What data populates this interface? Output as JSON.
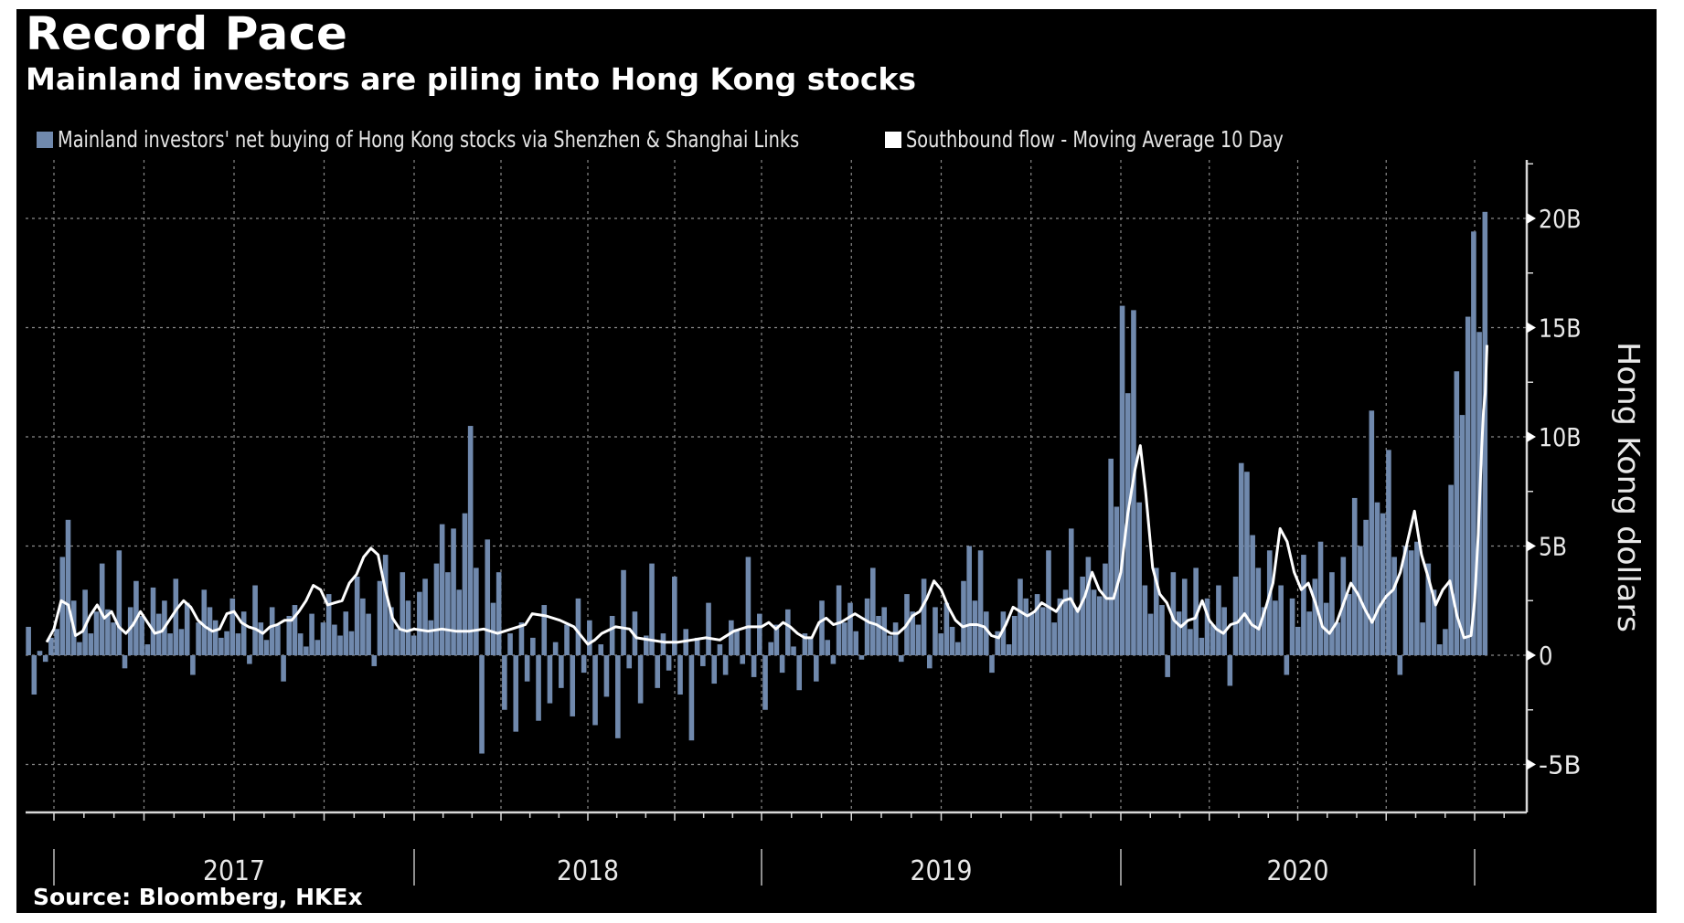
{
  "chart_data": {
    "type": "bar",
    "title": "Record Pace",
    "subtitle": "Mainland investors are piling into Hong Kong stocks",
    "source": "Source: Bloomberg, HKEx",
    "ylabel": "Hong Kong dollars",
    "xlabel": "",
    "ylim": [
      -7.3,
      22.7
    ],
    "xlim": [
      2016.92,
      2021.1
    ],
    "yticks": [
      {
        "value": 20,
        "label": "20B"
      },
      {
        "value": 15,
        "label": "15B"
      },
      {
        "value": 10,
        "label": "10B"
      },
      {
        "value": 5,
        "label": "5B"
      },
      {
        "value": 0,
        "label": "0"
      },
      {
        "value": -5,
        "label": "-5B"
      }
    ],
    "year_labels": [
      {
        "label": "2017",
        "start": 2017,
        "end": 2018
      },
      {
        "label": "2018",
        "start": 2018,
        "end": 2019
      },
      {
        "label": "2019",
        "start": 2019,
        "end": 2020
      },
      {
        "label": "2020",
        "start": 2020,
        "end": 2021
      }
    ],
    "year_boundaries": [
      2017,
      2018,
      2019,
      2020,
      2021
    ],
    "grid": true,
    "legend_position": "top-left",
    "series": [
      {
        "name": "Mainland investors' net buying of Hong Kong stocks via Shenzhen & Shanghai Links",
        "type": "bar",
        "color": "#7089ad",
        "x_start": 2016.93,
        "x_end": 2021.03,
        "values": [
          1.3,
          -1.8,
          0.2,
          -0.3,
          0.8,
          1.2,
          4.5,
          6.2,
          2.5,
          0.6,
          3.0,
          1.0,
          2.0,
          4.2,
          2.1,
          1.5,
          4.8,
          -0.6,
          2.2,
          3.4,
          1.8,
          0.5,
          3.1,
          1.9,
          2.5,
          1.0,
          3.5,
          1.2,
          2.4,
          -0.9,
          1.5,
          3.0,
          2.2,
          1.6,
          0.8,
          1.1,
          2.6,
          1.0,
          2.0,
          -0.4,
          3.2,
          1.5,
          0.7,
          2.2,
          1.4,
          -1.2,
          1.8,
          2.3,
          1.0,
          0.4,
          1.9,
          0.7,
          1.5,
          2.8,
          1.4,
          0.9,
          2.0,
          1.1,
          3.6,
          2.6,
          1.9,
          -0.5,
          3.4,
          4.6,
          2.2,
          1.2,
          3.8,
          2.5,
          0.9,
          2.9,
          3.5,
          1.6,
          4.2,
          6.0,
          3.8,
          5.8,
          3.0,
          6.5,
          10.5,
          4.0,
          -4.5,
          5.3,
          2.4,
          3.8,
          -2.5,
          1.0,
          -3.5,
          1.5,
          -1.2,
          0.8,
          -3.0,
          2.3,
          -2.2,
          0.6,
          -1.5,
          1.4,
          -2.8,
          2.6,
          -0.8,
          1.6,
          -3.2,
          0.5,
          -1.9,
          1.8,
          -3.8,
          3.9,
          -0.6,
          2.0,
          -2.2,
          0.9,
          4.2,
          -1.5,
          1.0,
          -0.7,
          3.6,
          -1.8,
          1.2,
          -3.9,
          0.8,
          -0.5,
          2.4,
          -1.3,
          0.5,
          -0.9,
          1.6,
          1.2,
          -0.4,
          4.5,
          -1.0,
          1.9,
          -2.5,
          0.6,
          1.4,
          -0.8,
          2.1,
          0.4,
          -1.6,
          1.0,
          0.8,
          -1.2,
          2.5,
          0.7,
          -0.4,
          3.2,
          1.5,
          2.4,
          1.1,
          -0.2,
          2.6,
          4.0,
          1.8,
          2.2,
          0.9,
          1.5,
          -0.3,
          2.8,
          2.0,
          1.4,
          3.5,
          -0.6,
          2.2,
          1.0,
          2.4,
          1.3,
          0.6,
          3.4,
          5.0,
          2.5,
          4.8,
          2.0,
          -0.8,
          1.1,
          2.0,
          0.5,
          1.8,
          3.5,
          2.6,
          1.9,
          2.8,
          2.2,
          4.8,
          1.5,
          2.6,
          3.0,
          5.8,
          2.2,
          3.6,
          4.5,
          3.0,
          2.7,
          4.2,
          9.0,
          6.8,
          16.0,
          12.0,
          15.8,
          7.0,
          3.2,
          1.9,
          4.0,
          2.3,
          -1.0,
          3.8,
          2.0,
          3.5,
          1.2,
          4.0,
          0.8,
          2.6,
          1.4,
          3.2,
          2.2,
          -1.4,
          3.6,
          8.8,
          8.4,
          5.5,
          4.0,
          2.2,
          4.8,
          2.5,
          3.2,
          -0.9,
          2.6,
          1.3,
          4.6,
          2.0,
          3.5,
          5.2,
          2.4,
          3.8,
          1.5,
          4.5,
          2.8,
          7.2,
          5.0,
          6.2,
          11.2,
          7.0,
          6.5,
          9.4,
          4.5,
          -0.9,
          5.0,
          4.8,
          5.2,
          1.5,
          4.2,
          3.0,
          0.5,
          1.2,
          7.8,
          13.0,
          11.0,
          15.5,
          19.4,
          14.8,
          20.3
        ]
      },
      {
        "name": "Southbound flow - Moving Average 10 Day",
        "type": "line",
        "color": "#ffffff",
        "points": [
          [
            2016.98,
            0.6
          ],
          [
            2017.0,
            1.2
          ],
          [
            2017.02,
            2.5
          ],
          [
            2017.04,
            2.3
          ],
          [
            2017.06,
            0.9
          ],
          [
            2017.08,
            1.1
          ],
          [
            2017.1,
            1.8
          ],
          [
            2017.12,
            2.3
          ],
          [
            2017.14,
            1.7
          ],
          [
            2017.16,
            2.0
          ],
          [
            2017.18,
            1.3
          ],
          [
            2017.2,
            1.0
          ],
          [
            2017.22,
            1.4
          ],
          [
            2017.24,
            2.0
          ],
          [
            2017.26,
            1.5
          ],
          [
            2017.28,
            1.0
          ],
          [
            2017.3,
            1.1
          ],
          [
            2017.32,
            1.6
          ],
          [
            2017.34,
            2.1
          ],
          [
            2017.36,
            2.5
          ],
          [
            2017.38,
            2.2
          ],
          [
            2017.4,
            1.6
          ],
          [
            2017.42,
            1.3
          ],
          [
            2017.44,
            1.1
          ],
          [
            2017.46,
            1.2
          ],
          [
            2017.48,
            1.9
          ],
          [
            2017.5,
            2.0
          ],
          [
            2017.52,
            1.5
          ],
          [
            2017.54,
            1.3
          ],
          [
            2017.56,
            1.2
          ],
          [
            2017.58,
            1.0
          ],
          [
            2017.6,
            1.3
          ],
          [
            2017.62,
            1.4
          ],
          [
            2017.64,
            1.6
          ],
          [
            2017.66,
            1.6
          ],
          [
            2017.68,
            2.0
          ],
          [
            2017.7,
            2.5
          ],
          [
            2017.72,
            3.2
          ],
          [
            2017.74,
            3.0
          ],
          [
            2017.76,
            2.3
          ],
          [
            2017.78,
            2.4
          ],
          [
            2017.8,
            2.5
          ],
          [
            2017.82,
            3.3
          ],
          [
            2017.84,
            3.7
          ],
          [
            2017.86,
            4.5
          ],
          [
            2017.88,
            4.9
          ],
          [
            2017.9,
            4.6
          ],
          [
            2017.92,
            3.0
          ],
          [
            2017.94,
            1.7
          ],
          [
            2017.96,
            1.2
          ],
          [
            2017.98,
            1.1
          ],
          [
            2018.0,
            1.2
          ],
          [
            2018.04,
            1.1
          ],
          [
            2018.08,
            1.2
          ],
          [
            2018.12,
            1.1
          ],
          [
            2018.16,
            1.1
          ],
          [
            2018.2,
            1.2
          ],
          [
            2018.24,
            1.0
          ],
          [
            2018.28,
            1.2
          ],
          [
            2018.32,
            1.4
          ],
          [
            2018.34,
            1.9
          ],
          [
            2018.38,
            1.8
          ],
          [
            2018.42,
            1.6
          ],
          [
            2018.46,
            1.3
          ],
          [
            2018.48,
            0.9
          ],
          [
            2018.5,
            0.5
          ],
          [
            2018.52,
            0.7
          ],
          [
            2018.54,
            1.0
          ],
          [
            2018.58,
            1.3
          ],
          [
            2018.62,
            1.2
          ],
          [
            2018.64,
            0.8
          ],
          [
            2018.68,
            0.7
          ],
          [
            2018.72,
            0.6
          ],
          [
            2018.76,
            0.6
          ],
          [
            2018.8,
            0.7
          ],
          [
            2018.84,
            0.8
          ],
          [
            2018.88,
            0.7
          ],
          [
            2018.92,
            1.1
          ],
          [
            2018.96,
            1.3
          ],
          [
            2019.0,
            1.3
          ],
          [
            2019.02,
            1.5
          ],
          [
            2019.04,
            1.2
          ],
          [
            2019.06,
            1.5
          ],
          [
            2019.08,
            1.3
          ],
          [
            2019.1,
            1.0
          ],
          [
            2019.12,
            0.8
          ],
          [
            2019.14,
            0.8
          ],
          [
            2019.16,
            1.5
          ],
          [
            2019.18,
            1.7
          ],
          [
            2019.2,
            1.4
          ],
          [
            2019.22,
            1.5
          ],
          [
            2019.24,
            1.7
          ],
          [
            2019.26,
            1.9
          ],
          [
            2019.28,
            1.7
          ],
          [
            2019.3,
            1.5
          ],
          [
            2019.32,
            1.4
          ],
          [
            2019.34,
            1.2
          ],
          [
            2019.36,
            1.0
          ],
          [
            2019.38,
            1.0
          ],
          [
            2019.4,
            1.3
          ],
          [
            2019.42,
            1.8
          ],
          [
            2019.44,
            2.0
          ],
          [
            2019.46,
            2.6
          ],
          [
            2019.48,
            3.4
          ],
          [
            2019.5,
            3.0
          ],
          [
            2019.52,
            2.2
          ],
          [
            2019.54,
            1.6
          ],
          [
            2019.56,
            1.3
          ],
          [
            2019.58,
            1.4
          ],
          [
            2019.6,
            1.4
          ],
          [
            2019.62,
            1.3
          ],
          [
            2019.64,
            0.9
          ],
          [
            2019.66,
            0.8
          ],
          [
            2019.68,
            1.4
          ],
          [
            2019.7,
            2.2
          ],
          [
            2019.72,
            2.0
          ],
          [
            2019.74,
            1.8
          ],
          [
            2019.76,
            2.0
          ],
          [
            2019.78,
            2.4
          ],
          [
            2019.8,
            2.2
          ],
          [
            2019.82,
            2.0
          ],
          [
            2019.84,
            2.5
          ],
          [
            2019.86,
            2.6
          ],
          [
            2019.88,
            2.0
          ],
          [
            2019.9,
            2.7
          ],
          [
            2019.92,
            3.8
          ],
          [
            2019.94,
            3.0
          ],
          [
            2019.96,
            2.6
          ],
          [
            2019.98,
            2.6
          ],
          [
            2020.0,
            3.8
          ],
          [
            2020.02,
            6.5
          ],
          [
            2020.04,
            8.5
          ],
          [
            2020.055,
            9.6
          ],
          [
            2020.07,
            7.5
          ],
          [
            2020.09,
            4.0
          ],
          [
            2020.11,
            2.8
          ],
          [
            2020.13,
            2.4
          ],
          [
            2020.15,
            1.6
          ],
          [
            2020.17,
            1.3
          ],
          [
            2020.19,
            1.6
          ],
          [
            2020.21,
            1.7
          ],
          [
            2020.23,
            2.5
          ],
          [
            2020.25,
            1.6
          ],
          [
            2020.27,
            1.2
          ],
          [
            2020.29,
            1.0
          ],
          [
            2020.31,
            1.4
          ],
          [
            2020.33,
            1.5
          ],
          [
            2020.35,
            1.9
          ],
          [
            2020.37,
            1.4
          ],
          [
            2020.39,
            1.2
          ],
          [
            2020.41,
            2.2
          ],
          [
            2020.43,
            3.3
          ],
          [
            2020.45,
            5.8
          ],
          [
            2020.47,
            5.2
          ],
          [
            2020.49,
            3.8
          ],
          [
            2020.51,
            3.0
          ],
          [
            2020.53,
            3.3
          ],
          [
            2020.55,
            2.4
          ],
          [
            2020.57,
            1.3
          ],
          [
            2020.59,
            1.0
          ],
          [
            2020.61,
            1.5
          ],
          [
            2020.63,
            2.4
          ],
          [
            2020.65,
            3.3
          ],
          [
            2020.67,
            2.8
          ],
          [
            2020.69,
            2.1
          ],
          [
            2020.71,
            1.5
          ],
          [
            2020.73,
            2.2
          ],
          [
            2020.75,
            2.7
          ],
          [
            2020.77,
            3.0
          ],
          [
            2020.79,
            3.8
          ],
          [
            2020.81,
            5.2
          ],
          [
            2020.83,
            6.6
          ],
          [
            2020.85,
            4.6
          ],
          [
            2020.87,
            3.5
          ],
          [
            2020.89,
            2.3
          ],
          [
            2020.91,
            3.0
          ],
          [
            2020.93,
            3.4
          ],
          [
            2020.95,
            1.8
          ],
          [
            2020.97,
            0.8
          ],
          [
            2020.99,
            0.9
          ],
          [
            2021.0,
            2.5
          ],
          [
            2021.01,
            5.5
          ],
          [
            2021.02,
            9.5
          ],
          [
            2021.025,
            11.2
          ],
          [
            2021.03,
            12.0
          ],
          [
            2021.035,
            14.2
          ]
        ]
      }
    ]
  }
}
